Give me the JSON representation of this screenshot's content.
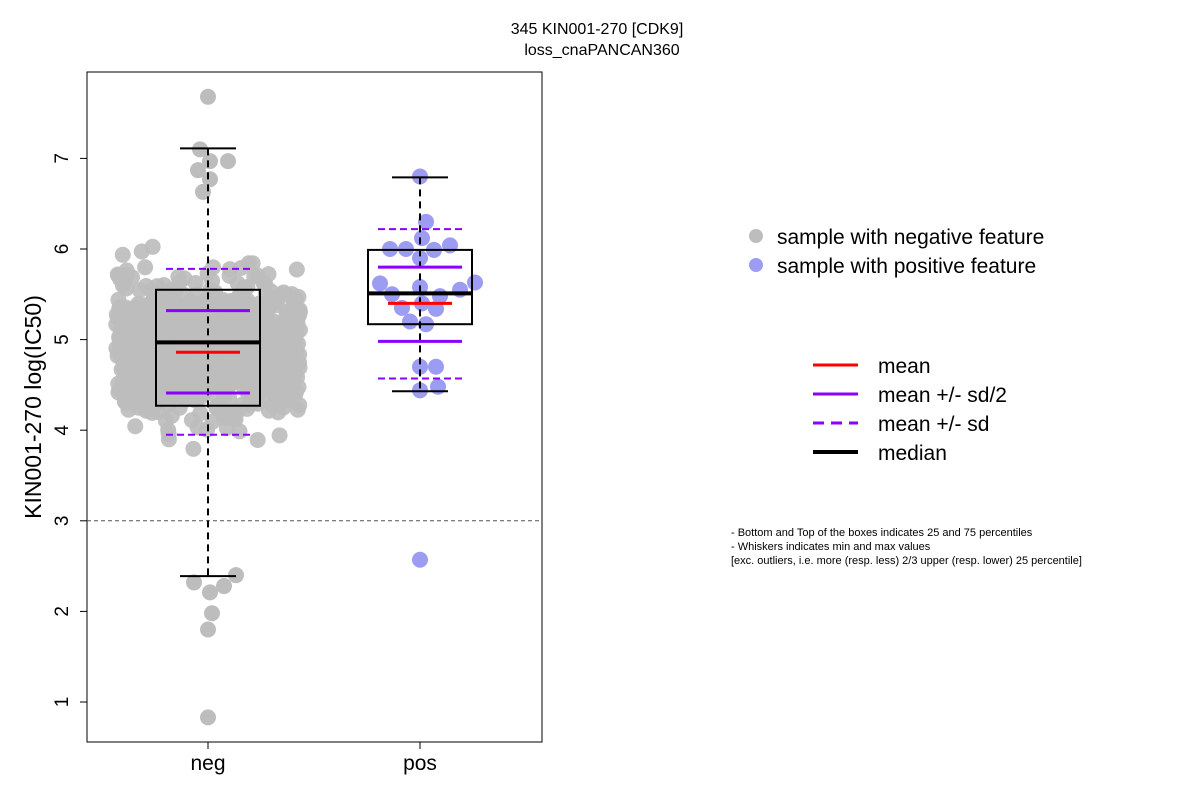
{
  "chart_data": {
    "type": "box",
    "title_line1": "345 KIN001-270 [CDK9]",
    "title_line2": "loss_cnaPANCAN360",
    "ylabel": "KIN001-270 log(IC50)",
    "xlabel": "",
    "ylim": [
      0.6,
      7.85
    ],
    "yticks": [
      1,
      2,
      3,
      4,
      5,
      6,
      7
    ],
    "categories": [
      "neg",
      "pos"
    ],
    "threshold_line": 3,
    "colors": {
      "neg": "#bdbdbd",
      "pos": "#9c9cf2",
      "mean": "#ff0000",
      "sd": "#8b00ff",
      "median": "#000000"
    },
    "groups": [
      {
        "name": "neg",
        "q1": 4.27,
        "median": 4.97,
        "q3": 5.55,
        "whisker_low": 2.39,
        "whisker_high": 7.11,
        "mean": 4.86,
        "mean_minus_half_sd": 4.41,
        "mean_plus_half_sd": 5.32,
        "mean_minus_sd": 3.95,
        "mean_plus_sd": 5.78,
        "points_note": "dense cloud of about 900 samples between 2.6 and 6.6",
        "highlight_points": [
          {
            "x": 0,
            "y": 7.68
          },
          {
            "x": -0.08,
            "y": 7.1
          },
          {
            "x": 0.02,
            "y": 6.97
          },
          {
            "x": 0.2,
            "y": 6.97
          },
          {
            "x": -0.1,
            "y": 6.87
          },
          {
            "x": 0.02,
            "y": 6.77
          },
          {
            "x": -0.05,
            "y": 6.63
          },
          {
            "x": 0.02,
            "y": 2.21
          },
          {
            "x": 0.04,
            "y": 1.98
          },
          {
            "x": 0,
            "y": 1.8
          },
          {
            "x": -0.14,
            "y": 2.32
          },
          {
            "x": 0.16,
            "y": 2.28
          },
          {
            "x": 0.28,
            "y": 2.4
          },
          {
            "x": 0,
            "y": 0.83
          }
        ]
      },
      {
        "name": "pos",
        "q1": 5.17,
        "median": 5.51,
        "q3": 5.99,
        "whisker_low": 4.43,
        "whisker_high": 6.79,
        "mean": 5.4,
        "mean_minus_half_sd": 4.98,
        "mean_plus_half_sd": 5.8,
        "mean_minus_sd": 4.57,
        "mean_plus_sd": 6.22,
        "points": [
          {
            "x": 0,
            "y": 6.8
          },
          {
            "x": 0.06,
            "y": 6.3
          },
          {
            "x": 0.02,
            "y": 6.12
          },
          {
            "x": -0.3,
            "y": 6.0
          },
          {
            "x": -0.14,
            "y": 6.0
          },
          {
            "x": 0.14,
            "y": 5.99
          },
          {
            "x": 0.3,
            "y": 6.04
          },
          {
            "x": 0,
            "y": 5.9
          },
          {
            "x": 0.55,
            "y": 5.63
          },
          {
            "x": -0.4,
            "y": 5.62
          },
          {
            "x": 0.4,
            "y": 5.55
          },
          {
            "x": -0.28,
            "y": 5.5
          },
          {
            "x": 0,
            "y": 5.58
          },
          {
            "x": -0.18,
            "y": 5.35
          },
          {
            "x": 0.02,
            "y": 5.4
          },
          {
            "x": 0.16,
            "y": 5.34
          },
          {
            "x": 0.2,
            "y": 5.48
          },
          {
            "x": 0.06,
            "y": 5.17
          },
          {
            "x": -0.1,
            "y": 5.2
          },
          {
            "x": 0.16,
            "y": 4.7
          },
          {
            "x": 0,
            "y": 4.7
          },
          {
            "x": 0,
            "y": 4.44
          },
          {
            "x": 0.18,
            "y": 4.48
          },
          {
            "x": 0,
            "y": 2.57
          }
        ]
      }
    ],
    "legend_points": [
      {
        "label": "sample with negative feature",
        "color": "#bdbdbd"
      },
      {
        "label": "sample with positive feature",
        "color": "#9c9cf2"
      }
    ],
    "legend_lines": [
      {
        "label": "mean",
        "color": "#ff0000",
        "dashed": false
      },
      {
        "label": "mean +/- sd/2",
        "color": "#8b00ff",
        "dashed": false
      },
      {
        "label": "mean +/- sd",
        "color": "#8b00ff",
        "dashed": true
      },
      {
        "label": "median",
        "color": "#000000",
        "dashed": false
      }
    ],
    "notes": [
      "- Bottom and Top of the boxes indicates 25 and 75 percentiles",
      "- Whiskers indicates min and max values",
      "[exc. outliers, i.e. more (resp. less) 2/3 upper (resp. lower) 25 percentile]"
    ]
  }
}
